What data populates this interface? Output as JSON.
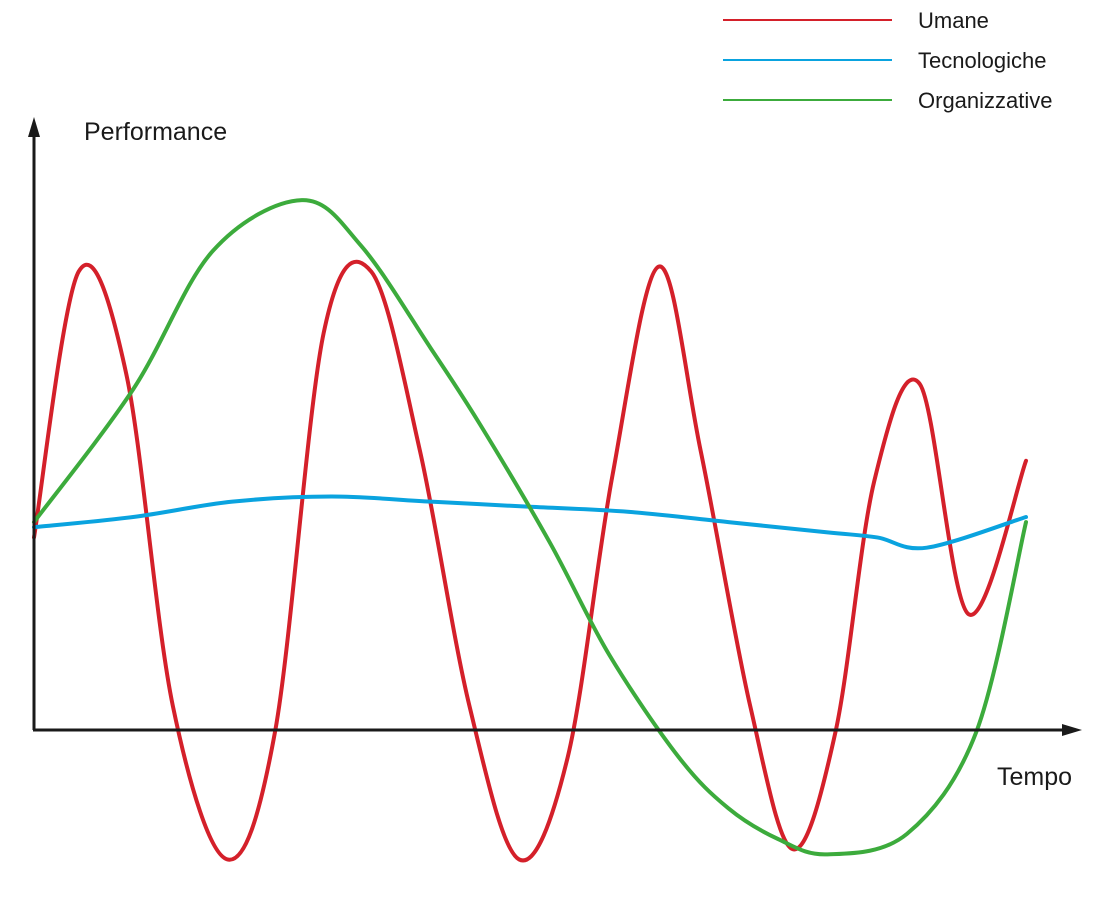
{
  "chart_data": {
    "type": "line",
    "title": "",
    "xlabel": "Tempo",
    "ylabel": "Performance",
    "xlim": [
      0,
      100
    ],
    "ylim": [
      -0.35,
      1
    ],
    "grid": false,
    "legend_position": "top-right",
    "series": [
      {
        "name": "Umane",
        "color": "#d4202a",
        "x": [
          0,
          4.5,
          9.3,
          14,
          19.5,
          24.3,
          29.2,
          34,
          38.9,
          43.9,
          48.9,
          53.8,
          58.3,
          63,
          67.2,
          72.2,
          76.5,
          80.8,
          84.7,
          89.3,
          94.2,
          100
        ],
        "y": [
          0.33,
          0.85,
          0.65,
          0.0,
          -0.3,
          -0.05,
          0.73,
          0.85,
          0.5,
          0.0,
          -0.3,
          -0.1,
          0.45,
          0.86,
          0.5,
          0.0,
          -0.28,
          -0.05,
          0.44,
          0.63,
          0.18,
          0.48
        ]
      },
      {
        "name": "Tecnologiche",
        "color": "#0aa3df",
        "x": [
          0,
          10,
          20,
          30,
          40,
          50,
          60,
          70,
          80,
          85,
          90,
          100
        ],
        "y": [
          0.35,
          0.37,
          0.4,
          0.41,
          0.4,
          0.39,
          0.38,
          0.36,
          0.34,
          0.33,
          0.31,
          0.37
        ]
      },
      {
        "name": "Organizzative",
        "color": "#3cab3c",
        "x": [
          0,
          10,
          18,
          27,
          33,
          40,
          45,
          52,
          58,
          65,
          70,
          75,
          80,
          88,
          95,
          100
        ],
        "y": [
          0.36,
          0.62,
          0.89,
          0.99,
          0.9,
          0.7,
          0.55,
          0.32,
          0.1,
          -0.1,
          -0.2,
          -0.26,
          -0.29,
          -0.25,
          -0.05,
          0.36
        ]
      }
    ]
  }
}
